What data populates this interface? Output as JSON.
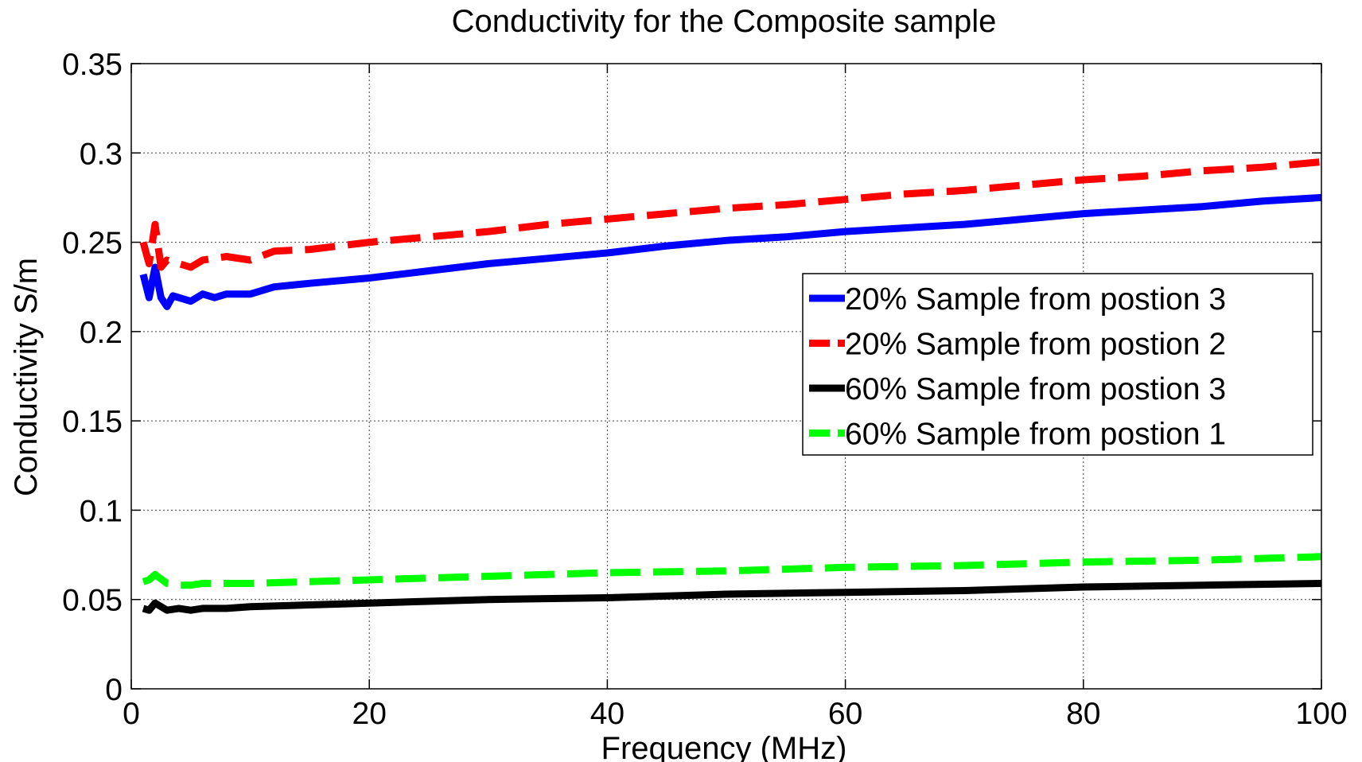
{
  "chart_data": {
    "type": "line",
    "title": "Conductivity for the Composite sample",
    "xlabel": "Frequency (MHz)",
    "ylabel": "Conductivity S/m",
    "xlim": [
      0,
      100
    ],
    "ylim": [
      0,
      0.35
    ],
    "xticks": [
      0,
      20,
      40,
      60,
      80,
      100
    ],
    "xtick_labels": [
      "0",
      "20",
      "40",
      "60",
      "80",
      "100"
    ],
    "yticks": [
      0,
      0.05,
      0.1,
      0.15,
      0.2,
      0.25,
      0.3,
      0.35
    ],
    "ytick_labels": [
      "0",
      "0.05",
      "0.1",
      "0.15",
      "0.2",
      "0.25",
      "0.3",
      "0.35"
    ],
    "grid": true,
    "legend_position": "right",
    "series": [
      {
        "name": "20% Sample from postion 3",
        "color": "#0000ff",
        "style": "solid",
        "points": [
          [
            1,
            0.232
          ],
          [
            1.5,
            0.219
          ],
          [
            2,
            0.236
          ],
          [
            2.5,
            0.219
          ],
          [
            3,
            0.214
          ],
          [
            3.5,
            0.22
          ],
          [
            4,
            0.219
          ],
          [
            5,
            0.217
          ],
          [
            6,
            0.221
          ],
          [
            7,
            0.219
          ],
          [
            8,
            0.221
          ],
          [
            10,
            0.221
          ],
          [
            12,
            0.225
          ],
          [
            15,
            0.227
          ],
          [
            20,
            0.23
          ],
          [
            25,
            0.234
          ],
          [
            30,
            0.238
          ],
          [
            35,
            0.241
          ],
          [
            40,
            0.244
          ],
          [
            45,
            0.248
          ],
          [
            50,
            0.251
          ],
          [
            55,
            0.253
          ],
          [
            60,
            0.256
          ],
          [
            65,
            0.258
          ],
          [
            70,
            0.26
          ],
          [
            75,
            0.263
          ],
          [
            80,
            0.266
          ],
          [
            85,
            0.268
          ],
          [
            90,
            0.27
          ],
          [
            95,
            0.273
          ],
          [
            100,
            0.275
          ]
        ]
      },
      {
        "name": "20% Sample from postion 2",
        "color": "#ff0000",
        "style": "dashed",
        "points": [
          [
            1,
            0.25
          ],
          [
            1.5,
            0.238
          ],
          [
            2,
            0.26
          ],
          [
            2.5,
            0.236
          ],
          [
            3,
            0.24
          ],
          [
            4,
            0.238
          ],
          [
            5,
            0.236
          ],
          [
            6,
            0.24
          ],
          [
            8,
            0.242
          ],
          [
            10,
            0.24
          ],
          [
            12,
            0.245
          ],
          [
            15,
            0.246
          ],
          [
            20,
            0.25
          ],
          [
            25,
            0.253
          ],
          [
            30,
            0.256
          ],
          [
            35,
            0.26
          ],
          [
            40,
            0.263
          ],
          [
            45,
            0.266
          ],
          [
            50,
            0.269
          ],
          [
            55,
            0.271
          ],
          [
            60,
            0.274
          ],
          [
            65,
            0.277
          ],
          [
            70,
            0.279
          ],
          [
            75,
            0.282
          ],
          [
            80,
            0.285
          ],
          [
            85,
            0.287
          ],
          [
            90,
            0.29
          ],
          [
            95,
            0.292
          ],
          [
            100,
            0.295
          ]
        ]
      },
      {
        "name": "60% Sample from postion 3",
        "color": "#000000",
        "style": "solid",
        "points": [
          [
            1,
            0.045
          ],
          [
            1.5,
            0.044
          ],
          [
            2,
            0.048
          ],
          [
            3,
            0.044
          ],
          [
            4,
            0.045
          ],
          [
            5,
            0.044
          ],
          [
            6,
            0.045
          ],
          [
            8,
            0.045
          ],
          [
            10,
            0.046
          ],
          [
            15,
            0.047
          ],
          [
            20,
            0.048
          ],
          [
            30,
            0.05
          ],
          [
            40,
            0.051
          ],
          [
            50,
            0.053
          ],
          [
            60,
            0.054
          ],
          [
            70,
            0.055
          ],
          [
            80,
            0.057
          ],
          [
            90,
            0.058
          ],
          [
            100,
            0.059
          ]
        ]
      },
      {
        "name": "60% Sample from postion 1",
        "color": "#00ff00",
        "style": "dashed",
        "points": [
          [
            1,
            0.06
          ],
          [
            1.5,
            0.061
          ],
          [
            2,
            0.064
          ],
          [
            3,
            0.059
          ],
          [
            4,
            0.058
          ],
          [
            5,
            0.058
          ],
          [
            6,
            0.059
          ],
          [
            8,
            0.059
          ],
          [
            10,
            0.059
          ],
          [
            15,
            0.06
          ],
          [
            20,
            0.061
          ],
          [
            30,
            0.063
          ],
          [
            40,
            0.065
          ],
          [
            50,
            0.066
          ],
          [
            60,
            0.068
          ],
          [
            70,
            0.069
          ],
          [
            80,
            0.071
          ],
          [
            90,
            0.072
          ],
          [
            100,
            0.074
          ]
        ]
      }
    ]
  }
}
